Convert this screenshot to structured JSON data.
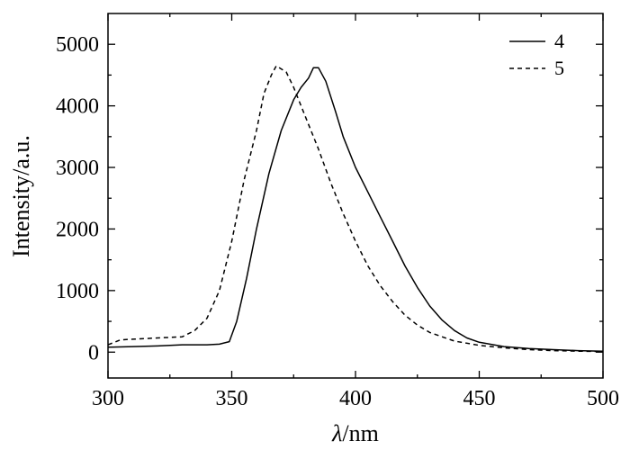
{
  "chart_data": {
    "type": "line",
    "xlabel_italic": "λ",
    "xlabel_unit": "/nm",
    "ylabel": "Intensity/a.u.",
    "xlim": [
      300,
      500
    ],
    "ylim": [
      -420,
      5500
    ],
    "xticks": [
      300,
      350,
      400,
      450,
      500
    ],
    "yticks": [
      0,
      1000,
      2000,
      3000,
      4000,
      5000
    ],
    "grid": false,
    "legend_position": "top-right",
    "series": [
      {
        "name": "4",
        "style": "solid",
        "color": "#000000",
        "points": [
          [
            300,
            80
          ],
          [
            310,
            90
          ],
          [
            320,
            100
          ],
          [
            330,
            120
          ],
          [
            340,
            120
          ],
          [
            345,
            130
          ],
          [
            349,
            170
          ],
          [
            352,
            500
          ],
          [
            356,
            1200
          ],
          [
            360,
            2000
          ],
          [
            365,
            2900
          ],
          [
            370,
            3600
          ],
          [
            375,
            4100
          ],
          [
            378,
            4300
          ],
          [
            381,
            4450
          ],
          [
            383,
            4620
          ],
          [
            385,
            4620
          ],
          [
            388,
            4400
          ],
          [
            392,
            3900
          ],
          [
            395,
            3500
          ],
          [
            400,
            3000
          ],
          [
            405,
            2600
          ],
          [
            410,
            2200
          ],
          [
            415,
            1800
          ],
          [
            420,
            1400
          ],
          [
            425,
            1050
          ],
          [
            430,
            750
          ],
          [
            435,
            520
          ],
          [
            440,
            350
          ],
          [
            445,
            230
          ],
          [
            450,
            160
          ],
          [
            460,
            90
          ],
          [
            470,
            60
          ],
          [
            480,
            40
          ],
          [
            490,
            25
          ],
          [
            500,
            15
          ]
        ]
      },
      {
        "name": "5",
        "style": "dashed",
        "color": "#000000",
        "points": [
          [
            300,
            120
          ],
          [
            305,
            200
          ],
          [
            310,
            210
          ],
          [
            320,
            230
          ],
          [
            330,
            250
          ],
          [
            335,
            350
          ],
          [
            340,
            550
          ],
          [
            345,
            1000
          ],
          [
            350,
            1800
          ],
          [
            355,
            2800
          ],
          [
            360,
            3600
          ],
          [
            363,
            4200
          ],
          [
            366,
            4500
          ],
          [
            368,
            4650
          ],
          [
            370,
            4600
          ],
          [
            372,
            4550
          ],
          [
            375,
            4300
          ],
          [
            378,
            4000
          ],
          [
            380,
            3800
          ],
          [
            385,
            3300
          ],
          [
            390,
            2750
          ],
          [
            395,
            2250
          ],
          [
            400,
            1800
          ],
          [
            405,
            1400
          ],
          [
            410,
            1080
          ],
          [
            415,
            820
          ],
          [
            420,
            600
          ],
          [
            425,
            440
          ],
          [
            430,
            320
          ],
          [
            440,
            180
          ],
          [
            450,
            110
          ],
          [
            460,
            70
          ],
          [
            470,
            40
          ],
          [
            480,
            25
          ],
          [
            490,
            15
          ],
          [
            500,
            10
          ]
        ]
      }
    ]
  }
}
